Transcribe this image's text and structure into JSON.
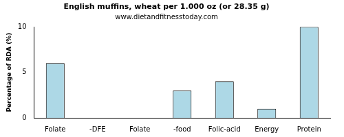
{
  "chart_data": {
    "type": "bar",
    "title": "English muffins, wheat per 1.000 oz (or 28.35 g)",
    "subtitle": "www.dietandfitnesstoday.com",
    "y_label": "Percentage of RDA (%)",
    "categories": [
      "Folate",
      "-DFE",
      "Folate",
      "-food",
      "Folic-acid",
      "Energy",
      "Protein"
    ],
    "values": [
      6,
      0,
      0,
      3,
      4,
      1,
      10
    ],
    "color": "#add8e6",
    "ylim": [
      0,
      10
    ],
    "yticks": [
      0,
      5,
      10
    ],
    "grid": false
  }
}
